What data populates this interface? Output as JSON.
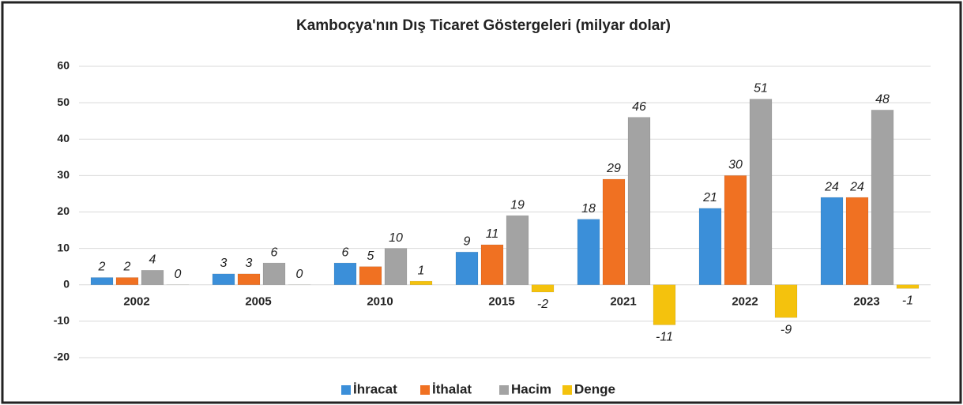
{
  "chart_data": {
    "type": "bar",
    "title": "Kamboçya'nın Dış Ticaret Göstergeleri  (milyar dolar)",
    "categories": [
      "2002",
      "2005",
      "2010",
      "2015",
      "2021",
      "2022",
      "2023"
    ],
    "series": [
      {
        "name": "İhracat",
        "color": "#3b8fd9",
        "values": [
          2,
          3,
          6,
          9,
          18,
          21,
          24
        ]
      },
      {
        "name": "İthalat",
        "color": "#f07122",
        "values": [
          2,
          3,
          5,
          11,
          29,
          30,
          24
        ]
      },
      {
        "name": "Hacim",
        "color": "#a3a3a3",
        "values": [
          4,
          6,
          10,
          19,
          46,
          51,
          48
        ]
      },
      {
        "name": "Denge",
        "color": "#f4c20d",
        "values": [
          0,
          0,
          1,
          -2,
          -11,
          -9,
          -1
        ]
      }
    ],
    "ylim": [
      -20,
      60
    ],
    "yticks": [
      -20,
      -10,
      0,
      10,
      20,
      30,
      40,
      50,
      60
    ],
    "grid": true,
    "legend": "bottom"
  }
}
